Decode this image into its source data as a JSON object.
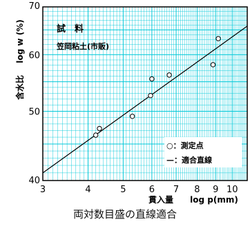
{
  "chart_data": {
    "type": "scatter",
    "title": "試　料",
    "sample": "笠岡粘土(市販)",
    "xlabel_jp": "貫入量",
    "xlabel": "log p(mm)",
    "ylabel_jp": "含水比",
    "ylabel": "log w (%)",
    "x_scale": "log",
    "y_scale": "log",
    "xlim": [
      3,
      11
    ],
    "ylim": [
      40,
      70
    ],
    "x_tick_labels": [
      "3",
      "4",
      "5",
      "6",
      "7",
      "8",
      "9",
      "10"
    ],
    "y_tick_labels": [
      "40",
      "50",
      "60",
      "70"
    ],
    "grid": true,
    "grid_color": "#00c8d8",
    "legend": {
      "placement": "bottom-right",
      "points_label": "○：測定点",
      "line_label": "—：適合直線"
    },
    "points": [
      {
        "x": 4.2,
        "y": 46.3
      },
      {
        "x": 4.3,
        "y": 47.3
      },
      {
        "x": 5.3,
        "y": 49.2
      },
      {
        "x": 5.95,
        "y": 52.6
      },
      {
        "x": 6.0,
        "y": 55.5
      },
      {
        "x": 6.7,
        "y": 56.2
      },
      {
        "x": 8.85,
        "y": 58.1
      },
      {
        "x": 9.15,
        "y": 63.2
      }
    ],
    "fit_line": [
      {
        "x": 3.0,
        "y": 41.0
      },
      {
        "x": 11.0,
        "y": 65.8
      }
    ]
  },
  "caption": "両対数目盛の直線適合"
}
